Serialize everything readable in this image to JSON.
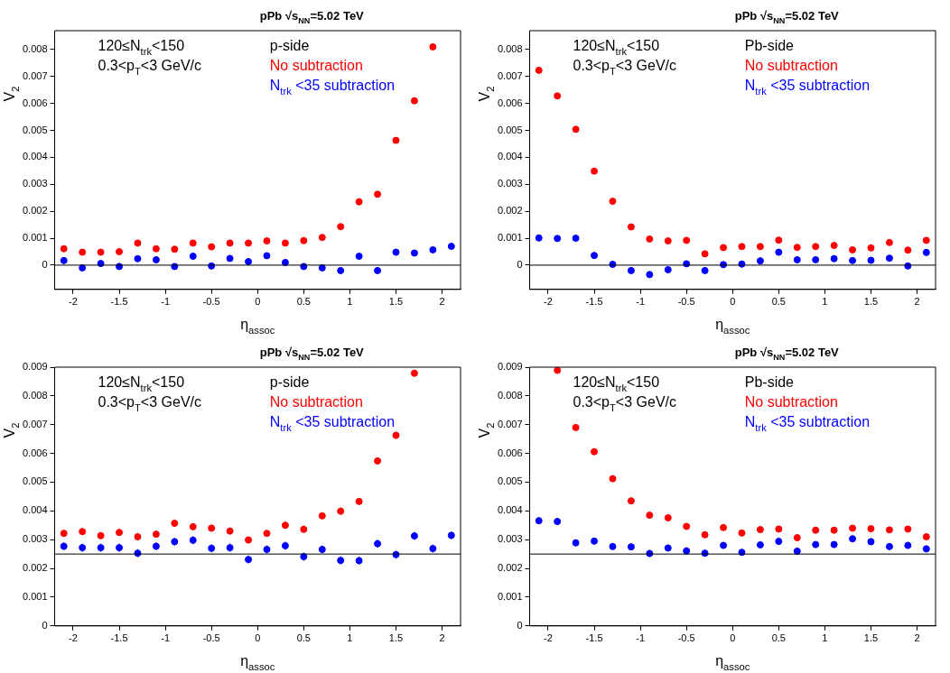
{
  "chart_data": [
    {
      "type": "scatter",
      "title": "pPb √s$_{NN}$=5.02 TeV",
      "xlabel": "η$_{assoc}$",
      "ylabel": "V$_{2}$",
      "annotations": [
        "120≤N$_{trk}$<150",
        "0.3<p$_{T}$<3 GeV/c",
        "p-side"
      ],
      "legend": "top",
      "marker": "circle",
      "x": [
        -2.1,
        -1.9,
        -1.7,
        -1.5,
        -1.3,
        -1.1,
        -0.9,
        -0.7,
        -0.5,
        -0.3,
        -0.1,
        0.1,
        0.3,
        0.5,
        0.7,
        0.9,
        1.1,
        1.3,
        1.5,
        1.7,
        1.9,
        2.1
      ],
      "xlim": [
        -2.2,
        2.2
      ],
      "xticks": [
        -2,
        -1.5,
        -1,
        -0.5,
        0,
        0.5,
        1,
        1.5,
        2
      ],
      "ylim": [
        -0.0009,
        0.0087
      ],
      "yticks": [
        0,
        0.001,
        0.002,
        0.003,
        0.004,
        0.005,
        0.006,
        0.007,
        0.008
      ],
      "ref_lines": [
        {
          "axis": "y",
          "value": 0,
          "color": "#000000"
        }
      ],
      "series": [
        {
          "name": "No subtraction",
          "color": "#ff0000",
          "values": [
            0.00061,
            0.00048,
            0.00048,
            0.0005,
            0.00082,
            0.00061,
            0.00059,
            0.00082,
            0.00068,
            0.00082,
            0.00082,
            0.0009,
            0.00082,
            0.00091,
            0.00103,
            0.00143,
            0.00235,
            0.00263,
            0.00463,
            0.0061,
            0.0081,
            null
          ],
          "errors": [
            0.0001,
            0.0001,
            0.0001,
            0.0001,
            0.0001,
            0.0001,
            0.0001,
            0.0001,
            0.0001,
            0.0001,
            0.0001,
            0.0001,
            0.0001,
            0.0001,
            0.0001,
            0.0001,
            0.0001,
            0.0001,
            0.0001,
            0.0001,
            0.0001,
            null
          ]
        },
        {
          "name": "N$_{trk}$ <35 subtraction",
          "color": "#0000ff",
          "values": [
            0.00017,
            -0.0001,
            6e-05,
            -5e-05,
            0.00024,
            0.0002,
            -5e-05,
            0.00033,
            -3e-05,
            0.00025,
            0.00013,
            0.00035,
            0.0001,
            -5e-05,
            -0.0001,
            -0.0002,
            0.00033,
            -0.0002,
            0.00048,
            0.00045,
            0.00057,
            0.0007
          ],
          "errors": [
            0.00012,
            0.00012,
            0.00012,
            0.00012,
            0.00012,
            0.00012,
            0.00012,
            0.00012,
            0.00012,
            0.00012,
            0.00012,
            0.00012,
            0.00012,
            0.00012,
            0.00012,
            0.00012,
            0.00012,
            0.00012,
            0.00012,
            0.00012,
            0.00012,
            0.00012
          ]
        }
      ]
    },
    {
      "type": "scatter",
      "title": "pPb √s$_{NN}$=5.02 TeV",
      "xlabel": "η$_{assoc}$",
      "ylabel": "V$_{2}$",
      "annotations": [
        "120≤N$_{trk}$<150",
        "0.3<p$_{T}$<3 GeV/c",
        "Pb-side"
      ],
      "legend": "top",
      "marker": "circle",
      "x": [
        -2.1,
        -1.9,
        -1.7,
        -1.5,
        -1.3,
        -1.1,
        -0.9,
        -0.7,
        -0.5,
        -0.3,
        -0.1,
        0.1,
        0.3,
        0.5,
        0.7,
        0.9,
        1.1,
        1.3,
        1.5,
        1.7,
        1.9,
        2.1
      ],
      "xlim": [
        -2.2,
        2.2
      ],
      "xticks": [
        -2,
        -1.5,
        -1,
        -0.5,
        0,
        0.5,
        1,
        1.5,
        2
      ],
      "ylim": [
        -0.0009,
        0.0087
      ],
      "yticks": [
        0,
        0.001,
        0.002,
        0.003,
        0.004,
        0.005,
        0.006,
        0.007,
        0.008
      ],
      "ref_lines": [
        {
          "axis": "y",
          "value": 0,
          "color": "#000000"
        }
      ],
      "series": [
        {
          "name": "No subtraction",
          "color": "#ff0000",
          "values": [
            0.00723,
            0.00628,
            0.00504,
            0.00349,
            0.00237,
            0.00142,
            0.00097,
            0.0009,
            0.00092,
            0.00042,
            0.00065,
            0.00069,
            0.00069,
            0.00093,
            0.00066,
            0.00069,
            0.00073,
            0.00057,
            0.00064,
            0.00084,
            0.00056,
            0.00092
          ],
          "errors": [
            0.0001,
            0.0001,
            0.0001,
            0.0001,
            0.0001,
            0.0001,
            0.0001,
            0.0001,
            0.0001,
            0.0001,
            0.0001,
            0.0001,
            0.0001,
            0.0001,
            0.0001,
            0.0001,
            0.0001,
            0.0001,
            0.0001,
            0.0001,
            0.0001,
            0.0001
          ]
        },
        {
          "name": "N$_{trk}$ <35 subtraction",
          "color": "#0000ff",
          "values": [
            0.00101,
            0.00099,
            0.001,
            0.00036,
            3e-05,
            -0.0002,
            -0.00035,
            -0.00017,
            5e-05,
            -0.0002,
            2e-05,
            4e-05,
            0.00016,
            0.00048,
            0.0002,
            0.0002,
            0.00024,
            0.00017,
            0.00018,
            0.00026,
            -3e-05,
            0.00047
          ],
          "errors": [
            0.00012,
            0.00012,
            0.00012,
            0.00012,
            0.00012,
            0.00012,
            0.00012,
            0.00012,
            0.00012,
            0.00012,
            0.00012,
            0.00012,
            0.00012,
            0.00012,
            0.00012,
            0.00012,
            0.00012,
            0.00012,
            0.00012,
            0.00012,
            0.00012,
            0.00012
          ]
        }
      ]
    },
    {
      "type": "scatter",
      "title": "pPb √s$_{NN}$=5.02 TeV",
      "xlabel": "η$_{assoc}$",
      "ylabel": "V$_{2}$",
      "annotations": [
        "120≤N$_{trk}$<150",
        "0.3<p$_{T}$<3 GeV/c",
        "p-side"
      ],
      "legend": "top",
      "marker": "circle",
      "x": [
        -2.1,
        -1.9,
        -1.7,
        -1.5,
        -1.3,
        -1.1,
        -0.9,
        -0.7,
        -0.5,
        -0.3,
        -0.1,
        0.1,
        0.3,
        0.5,
        0.7,
        0.9,
        1.1,
        1.3,
        1.5,
        1.7,
        1.9,
        2.1
      ],
      "xlim": [
        -2.2,
        2.2
      ],
      "xticks": [
        -2,
        -1.5,
        -1,
        -0.5,
        0,
        0.5,
        1,
        1.5,
        2
      ],
      "ylim": [
        0,
        0.009
      ],
      "yticks": [
        0,
        0.001,
        0.002,
        0.003,
        0.004,
        0.005,
        0.006,
        0.007,
        0.008,
        0.009
      ],
      "ref_lines": [
        {
          "axis": "y",
          "value": 0.0025,
          "color": "#000000"
        }
      ],
      "series": [
        {
          "name": "No subtraction",
          "color": "#ff0000",
          "values": [
            0.00322,
            0.00328,
            0.00314,
            0.00325,
            0.0031,
            0.00319,
            0.00357,
            0.00345,
            0.0034,
            0.0033,
            0.00299,
            0.00322,
            0.0035,
            0.00336,
            0.00383,
            0.00399,
            0.00433,
            0.00574,
            0.00663,
            0.00879,
            null,
            null
          ],
          "errors": [
            0.00012,
            0.00012,
            0.00012,
            0.00012,
            0.00012,
            0.00012,
            0.00012,
            0.00012,
            0.00012,
            0.00012,
            0.00012,
            0.00012,
            0.00012,
            0.00012,
            0.00012,
            0.00012,
            0.00012,
            0.00012,
            0.00012,
            0.00012,
            null,
            null
          ]
        },
        {
          "name": "N$_{trk}$ <35 subtraction",
          "color": "#0000ff",
          "values": [
            0.00277,
            0.00272,
            0.00272,
            0.00272,
            0.00253,
            0.00277,
            0.00293,
            0.00298,
            0.0027,
            0.00272,
            0.00231,
            0.00266,
            0.00279,
            0.00241,
            0.00266,
            0.00228,
            0.00227,
            0.00286,
            0.00248,
            0.00313,
            0.00269,
            0.00315
          ],
          "errors": [
            0.00014,
            0.00014,
            0.00014,
            0.00014,
            0.00014,
            0.00014,
            0.00014,
            0.00014,
            0.00014,
            0.00014,
            0.00014,
            0.00014,
            0.00014,
            0.00014,
            0.00014,
            0.00014,
            0.00014,
            0.00014,
            0.00014,
            0.00014,
            0.00014,
            0.00014
          ]
        }
      ]
    },
    {
      "type": "scatter",
      "title": "pPb √s$_{NN}$=5.02 TeV",
      "xlabel": "η$_{assoc}$",
      "ylabel": "V$_{2}$",
      "annotations": [
        "120≤N$_{trk}$<150",
        "0.3<p$_{T}$<3 GeV/c",
        "Pb-side"
      ],
      "legend": "top",
      "marker": "circle",
      "x": [
        -2.1,
        -1.9,
        -1.7,
        -1.5,
        -1.3,
        -1.1,
        -0.9,
        -0.7,
        -0.5,
        -0.3,
        -0.1,
        0.1,
        0.3,
        0.5,
        0.7,
        0.9,
        1.1,
        1.3,
        1.5,
        1.7,
        1.9,
        2.1
      ],
      "xlim": [
        -2.2,
        2.2
      ],
      "xticks": [
        -2,
        -1.5,
        -1,
        -0.5,
        0,
        0.5,
        1,
        1.5,
        2
      ],
      "ylim": [
        0,
        0.009
      ],
      "yticks": [
        0,
        0.001,
        0.002,
        0.003,
        0.004,
        0.005,
        0.006,
        0.007,
        0.008,
        0.009
      ],
      "ref_lines": [
        {
          "axis": "y",
          "value": 0.0025,
          "color": "#000000"
        }
      ],
      "series": [
        {
          "name": "No subtraction",
          "color": "#ff0000",
          "values": [
            null,
            0.00889,
            0.0069,
            0.00606,
            0.00512,
            0.00435,
            0.00385,
            0.00376,
            0.00346,
            0.00317,
            0.00342,
            0.00323,
            0.00335,
            0.00337,
            0.00307,
            0.00333,
            0.00333,
            0.0034,
            0.00338,
            0.00334,
            0.00337,
            0.0031
          ],
          "errors": [
            null,
            0.0001,
            0.0001,
            0.0001,
            0.0001,
            0.0001,
            0.0001,
            0.0001,
            0.0001,
            0.0001,
            0.0001,
            0.0001,
            0.0001,
            0.0001,
            0.0001,
            0.0001,
            0.0001,
            0.0001,
            0.0001,
            0.0001,
            0.0001,
            0.0001
          ]
        },
        {
          "name": "N$_{trk}$ <35 subtraction",
          "color": "#0000ff",
          "values": [
            0.00366,
            0.00363,
            0.00289,
            0.00295,
            0.00276,
            0.00275,
            0.00252,
            0.00271,
            0.00261,
            0.00253,
            0.0028,
            0.00256,
            0.00282,
            0.00294,
            0.0026,
            0.00283,
            0.00283,
            0.00303,
            0.00293,
            0.00276,
            0.0028,
            0.00268
          ],
          "errors": [
            0.00012,
            0.00012,
            0.00012,
            0.00012,
            0.00012,
            0.00012,
            0.00012,
            0.00012,
            0.00012,
            0.00012,
            0.00012,
            0.00012,
            0.00012,
            0.00012,
            0.00012,
            0.00012,
            0.00012,
            0.00012,
            0.00012,
            0.00012,
            0.00012,
            0.00012
          ]
        }
      ]
    }
  ]
}
